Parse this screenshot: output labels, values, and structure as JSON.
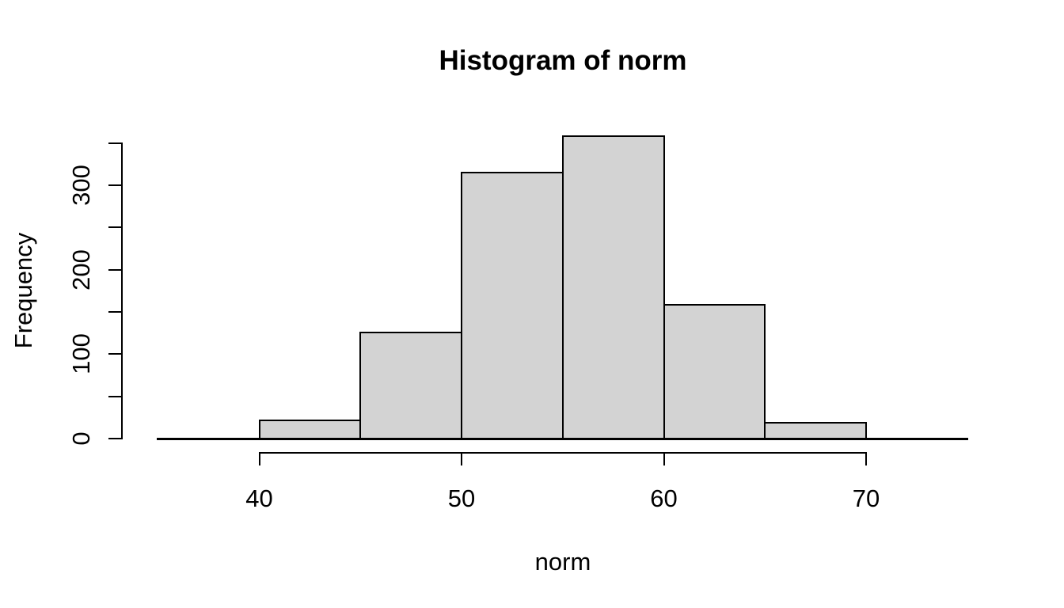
{
  "title": "Histogram of norm",
  "chart_data": {
    "type": "bar",
    "subtype": "histogram",
    "title": "Histogram of norm",
    "xlabel": "norm",
    "ylabel": "Frequency",
    "bin_edges": [
      40,
      45,
      50,
      55,
      60,
      65,
      70
    ],
    "frequencies": [
      22,
      126,
      315,
      358,
      158,
      19
    ],
    "x_tick_values": [
      40,
      50,
      60,
      70
    ],
    "x_tick_labels": [
      "40",
      "50",
      "60",
      "70"
    ],
    "y_tick_values": [
      0,
      50,
      100,
      150,
      200,
      250,
      300,
      350
    ],
    "y_labeled_ticks": [
      0,
      100,
      200,
      300
    ],
    "y_tick_label_texts": [
      "0",
      "100",
      "200",
      "300"
    ],
    "xlim": [
      35,
      75
    ],
    "ylim": [
      0,
      350
    ],
    "grid": "off",
    "legend": "none",
    "bar_fill_color": "#d3d3d3",
    "bar_border_color": "#000000",
    "axis_color": "#000000",
    "background_color": "#ffffff"
  }
}
